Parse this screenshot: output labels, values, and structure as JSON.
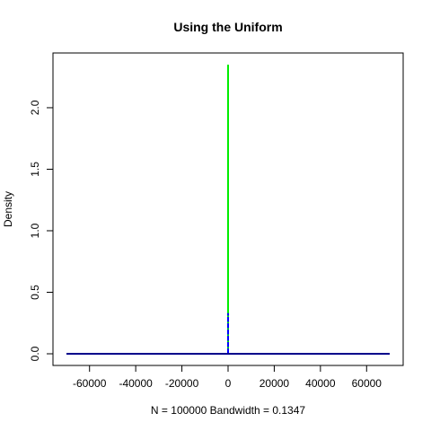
{
  "chart_data": {
    "type": "line",
    "title": "Using the Uniform",
    "xlabel": "N = 100000   Bandwidth = 0.1347",
    "ylabel": "Density",
    "xlim": [
      -70000,
      70000
    ],
    "ylim": [
      0,
      2.35
    ],
    "x_ticks": [
      -60000,
      -40000,
      -20000,
      0,
      20000,
      40000,
      60000
    ],
    "y_ticks": [
      0.0,
      0.5,
      1.0,
      1.5,
      2.0
    ],
    "y_tick_labels": [
      "0.0",
      "0.5",
      "1.0",
      "1.5",
      "2.0"
    ],
    "grid": false,
    "series": [
      {
        "color": "#00ee00",
        "style": "solid",
        "x": [
          -70000,
          -0.5,
          0,
          0.5,
          70000
        ],
        "y": [
          0,
          0,
          2.35,
          0,
          0
        ]
      },
      {
        "color": "#0000ff",
        "style": "dashed",
        "x": [
          -70000,
          -0.5,
          0,
          0.5,
          70000
        ],
        "y": [
          0,
          0,
          0.33,
          0,
          0
        ]
      },
      {
        "color": "#00008b",
        "style": "solid",
        "x": [
          -70000,
          70000
        ],
        "y": [
          0,
          0
        ]
      }
    ]
  }
}
